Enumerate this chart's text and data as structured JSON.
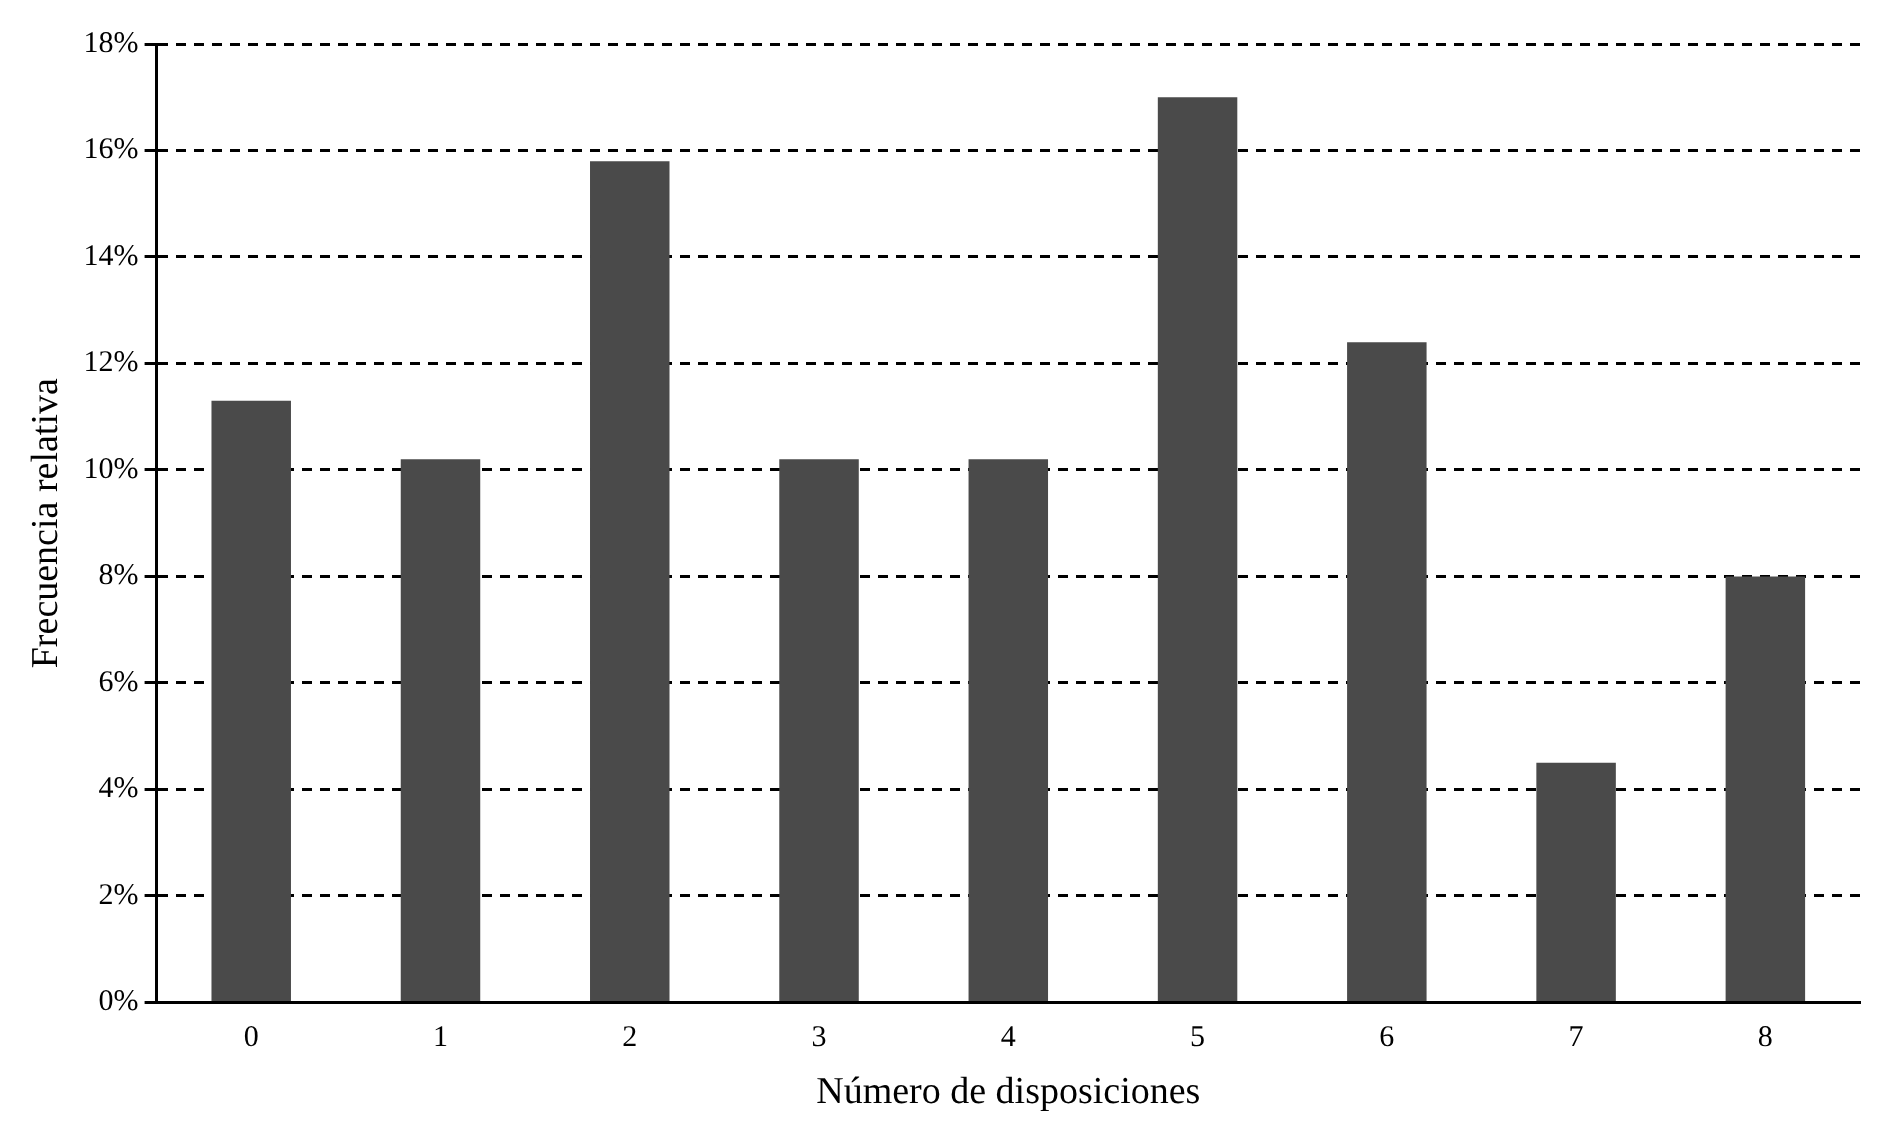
{
  "chart_data": {
    "type": "bar",
    "xlabel": "Número de disposiciones",
    "ylabel": "Frecuencia relativa",
    "categories": [
      "0",
      "1",
      "2",
      "3",
      "4",
      "5",
      "6",
      "7",
      "8"
    ],
    "values": [
      11.3,
      10.2,
      15.8,
      10.2,
      10.2,
      17.0,
      12.4,
      4.5,
      8.0
    ],
    "color": "#4a4a4a",
    "ylim": [
      0,
      18
    ],
    "yticks": [
      {
        "value": 0,
        "label": "0%"
      },
      {
        "value": 2,
        "label": "2%"
      },
      {
        "value": 4,
        "label": "4%"
      },
      {
        "value": 6,
        "label": "6%"
      },
      {
        "value": 8,
        "label": "8%"
      },
      {
        "value": 10,
        "label": "10%"
      },
      {
        "value": 12,
        "label": "12%"
      },
      {
        "value": 14,
        "label": "14%"
      },
      {
        "value": 16,
        "label": "16%"
      },
      {
        "value": 18,
        "label": "18%"
      }
    ],
    "grid": "y",
    "legend": false
  }
}
